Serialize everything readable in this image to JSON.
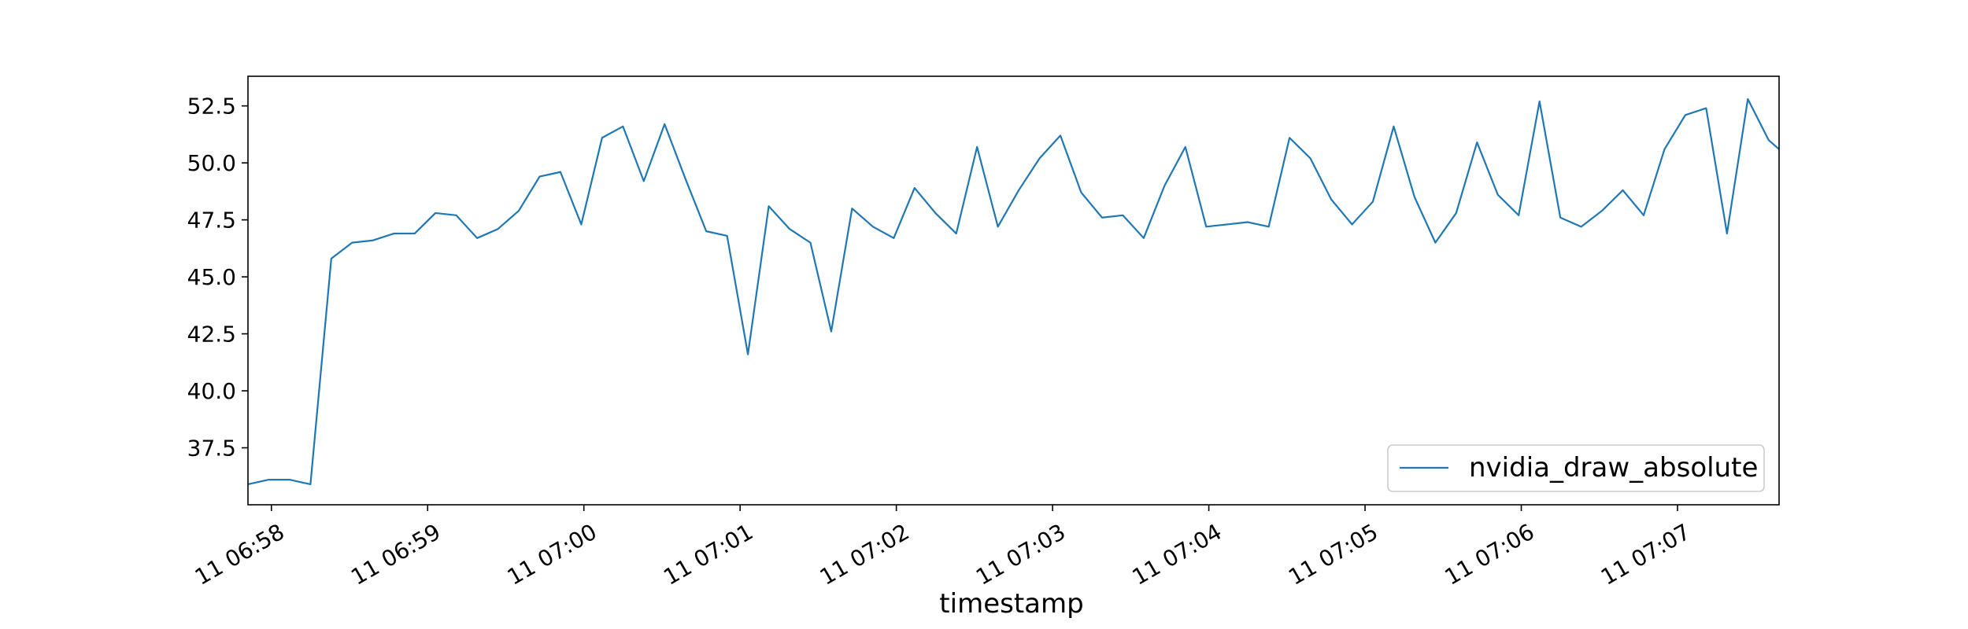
{
  "chart_data": {
    "type": "line",
    "title": "",
    "xlabel": "timestamp",
    "ylabel": "",
    "x_ticks": [
      "11 06:58",
      "11 06:59",
      "11 07:00",
      "11 07:01",
      "11 07:02",
      "11 07:03",
      "11 07:04",
      "11 07:05",
      "11 07:06",
      "11 07:07"
    ],
    "y_ticks": [
      "37.5",
      "40.0",
      "42.5",
      "45.0",
      "47.5",
      "50.0",
      "52.5"
    ],
    "xlim": [
      "11 06:57:51",
      "11 07:07:39"
    ],
    "ylim": [
      35.0,
      53.8
    ],
    "grid": false,
    "legend_position": "lower right",
    "color": "#1f77b4",
    "series": [
      {
        "name": "nvidia_draw_absolute",
        "x": [
          "11 06:57:51",
          "11 06:57:59",
          "11 06:58:07",
          "11 06:58:15",
          "11 06:58:23",
          "11 06:58:31",
          "11 06:58:39",
          "11 06:58:47",
          "11 06:58:55",
          "11 06:59:03",
          "11 06:59:11",
          "11 06:59:19",
          "11 06:59:27",
          "11 06:59:35",
          "11 06:59:43",
          "11 06:59:51",
          "11 06:59:59",
          "11 07:00:07",
          "11 07:00:15",
          "11 07:00:23",
          "11 07:00:31",
          "11 07:00:39",
          "11 07:00:47",
          "11 07:00:55",
          "11 07:01:03",
          "11 07:01:11",
          "11 07:01:19",
          "11 07:01:27",
          "11 07:01:35",
          "11 07:01:43",
          "11 07:01:51",
          "11 07:01:59",
          "11 07:02:07",
          "11 07:02:15",
          "11 07:02:23",
          "11 07:02:31",
          "11 07:02:39",
          "11 07:02:47",
          "11 07:02:55",
          "11 07:03:03",
          "11 07:03:11",
          "11 07:03:19",
          "11 07:03:27",
          "11 07:03:35",
          "11 07:03:43",
          "11 07:03:51",
          "11 07:03:59",
          "11 07:04:07",
          "11 07:04:15",
          "11 07:04:23",
          "11 07:04:31",
          "11 07:04:39",
          "11 07:04:47",
          "11 07:04:55",
          "11 07:05:03",
          "11 07:05:11",
          "11 07:05:19",
          "11 07:05:27",
          "11 07:05:35",
          "11 07:05:43",
          "11 07:05:51",
          "11 07:05:59",
          "11 07:06:07",
          "11 07:06:15",
          "11 07:06:23",
          "11 07:06:31",
          "11 07:06:39",
          "11 07:06:47",
          "11 07:06:55",
          "11 07:07:03",
          "11 07:07:11",
          "11 07:07:19",
          "11 07:07:27",
          "11 07:07:35",
          "11 07:07:39"
        ],
        "values": [
          35.9,
          36.1,
          36.1,
          35.9,
          45.8,
          46.5,
          46.6,
          46.9,
          46.9,
          47.8,
          47.7,
          46.7,
          47.1,
          47.9,
          49.4,
          49.6,
          47.3,
          51.1,
          51.6,
          49.2,
          51.7,
          49.3,
          47.0,
          46.8,
          41.6,
          48.1,
          47.1,
          46.5,
          42.6,
          48.0,
          47.2,
          46.7,
          48.9,
          47.8,
          46.9,
          50.7,
          47.2,
          48.8,
          50.2,
          51.2,
          48.7,
          47.6,
          47.7,
          46.7,
          49.0,
          50.7,
          47.2,
          47.3,
          47.4,
          47.2,
          51.1,
          50.2,
          48.4,
          47.3,
          48.3,
          51.6,
          48.5,
          46.5,
          47.8,
          50.9,
          48.6,
          47.7,
          52.7,
          47.6,
          47.2,
          47.9,
          48.8,
          47.7,
          50.6,
          52.1,
          52.4,
          46.9,
          52.8,
          51.0,
          50.6
        ]
      }
    ]
  }
}
